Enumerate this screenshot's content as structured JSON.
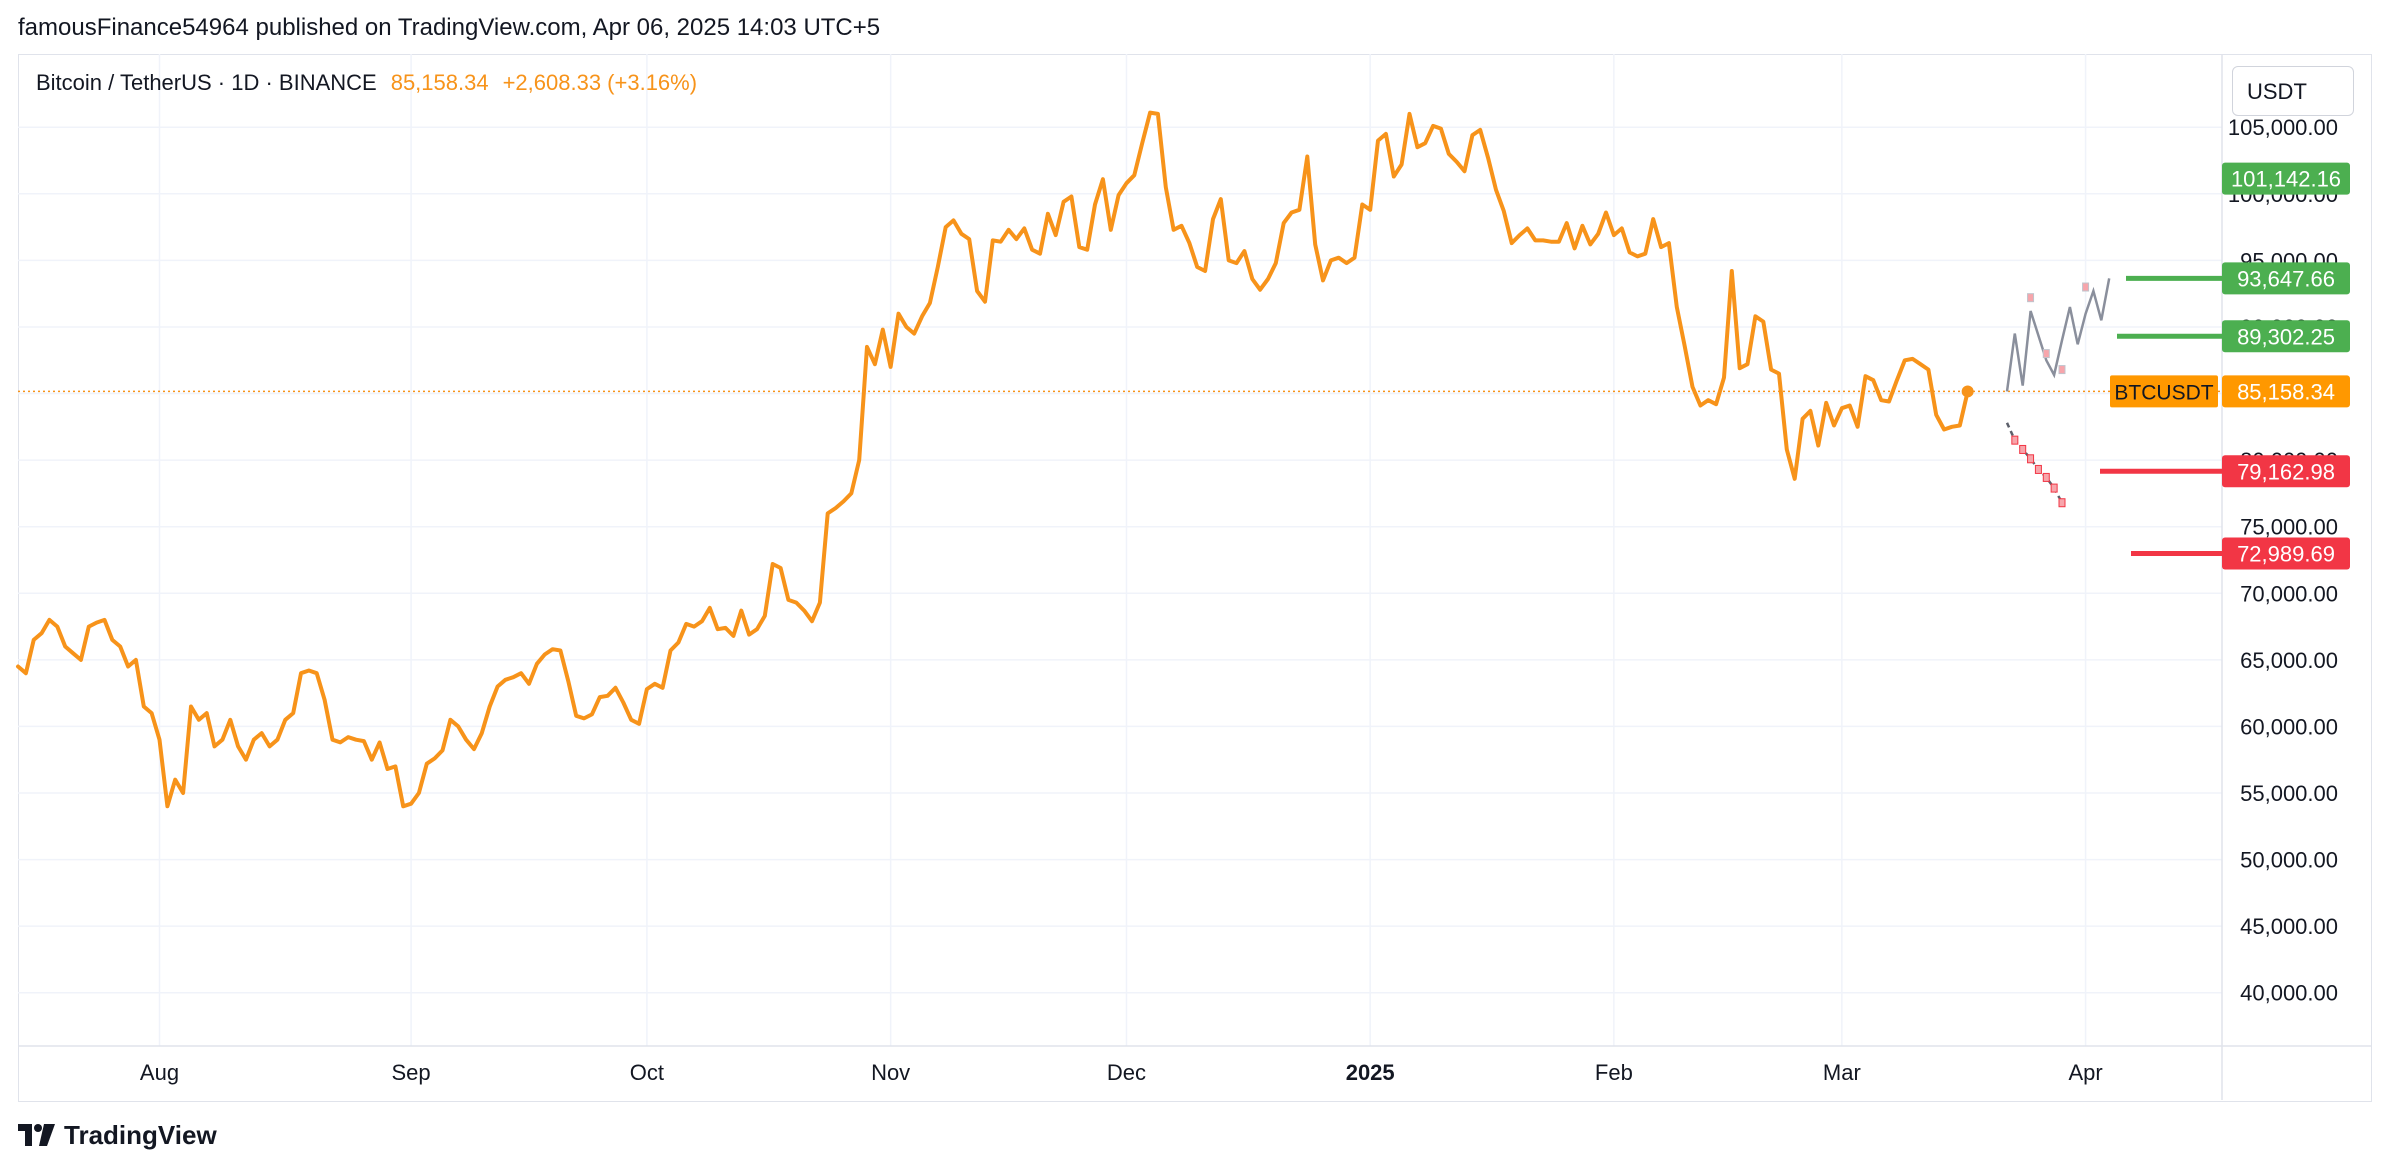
{
  "header": {
    "attribution": "famousFinance54964 published on TradingView.com, Apr 06, 2025 14:03 UTC+5"
  },
  "legend": {
    "symbol": "Bitcoin / TetherUS · 1D · BINANCE",
    "price": "85,158.34",
    "change": "+2,608.33 (+3.16%)"
  },
  "currency_button": "USDT",
  "footer": {
    "logo_text": "TradingView"
  },
  "colors": {
    "series": "#f7931a",
    "green_label": "#4caf50",
    "red_label": "#f23645",
    "orange_label": "#ff9800",
    "grid": "#f0f3fa"
  },
  "price_labels": [
    {
      "value": 101142.16,
      "text": "101,142.16",
      "color": "#4caf50"
    },
    {
      "value": 93647.66,
      "text": "93,647.66",
      "color": "#4caf50"
    },
    {
      "value": 89302.25,
      "text": "89,302.25",
      "color": "#4caf50"
    },
    {
      "value": 85158.34,
      "text": "85,158.34",
      "color": "#ff9800"
    },
    {
      "value": 79162.98,
      "text": "79,162.98",
      "color": "#f23645"
    },
    {
      "value": 72989.69,
      "text": "72,989.69",
      "color": "#f23645"
    }
  ],
  "symbol_tag": "BTCUSDT",
  "chart_data": {
    "type": "line",
    "series": [
      {
        "values": [
          64500,
          64000,
          66500,
          67000,
          68000,
          67500,
          66000,
          65500,
          65000,
          67500,
          67800,
          68000,
          66500,
          66000,
          64500,
          65000,
          61500,
          61000,
          59000,
          54000,
          56000,
          55000,
          61500,
          60500,
          61000,
          58500,
          59000,
          60500,
          58500,
          57500,
          59000,
          59500,
          58500,
          59000,
          60500,
          61000,
          64000,
          64200,
          64000,
          62000,
          59000,
          58800,
          59200,
          59000,
          58900,
          57500,
          58800,
          56800,
          57000,
          54000,
          54200,
          55000,
          57200,
          57600,
          58200,
          60500,
          60000,
          59000,
          58300,
          59500,
          61500,
          63000,
          63500,
          63700,
          64000,
          63200,
          64700,
          65400,
          65800,
          65700,
          63400,
          60800,
          60600,
          60900,
          62200,
          62300,
          62900,
          61800,
          60500,
          60200,
          62800,
          63200,
          62900,
          65700,
          66300,
          67700,
          67500,
          67900,
          68900,
          67300,
          67400,
          66800,
          68700,
          66900,
          67300,
          68300,
          72200,
          71900,
          69500,
          69300,
          68700,
          67900,
          69300,
          76000,
          76400,
          76900,
          77500,
          80000,
          88500,
          87200,
          89800,
          87000,
          91000,
          90000,
          89500,
          90800,
          91800,
          94500,
          97500,
          98000,
          97000,
          96600,
          92700,
          91900,
          96500,
          96400,
          97300,
          96600,
          97400,
          95800,
          95500,
          98500,
          96900,
          99400,
          99800,
          96000,
          95800,
          99200,
          101100,
          97300,
          99900,
          100800,
          101400,
          103800,
          106100,
          106000,
          100500,
          97300,
          97600,
          96300,
          94500,
          94200,
          98100,
          99600,
          95000,
          94800,
          95700,
          93600,
          92800,
          93600,
          94800,
          97800,
          98600,
          98800,
          102800,
          96200,
          93500,
          95000,
          95200,
          94800,
          95200,
          99200,
          98800,
          104000,
          104500,
          101300,
          102200,
          106000,
          103500,
          103800,
          105100,
          104900,
          103000,
          102400,
          101700,
          104400,
          104800,
          102700,
          100300,
          98700,
          96300,
          96900,
          97400,
          96500,
          96500,
          96400,
          96400,
          97800,
          95900,
          97600,
          96200,
          97000,
          98600,
          96900,
          97400,
          95600,
          95300,
          95500,
          98100,
          96000,
          96300,
          91500,
          88600,
          85500,
          84100,
          84500,
          84200,
          86200,
          94200,
          86900,
          87200,
          90800,
          90400,
          86800,
          86500,
          80800,
          78600,
          83100,
          83700,
          81100,
          84300,
          82600,
          83900,
          84100,
          82500,
          86300,
          86000,
          84500,
          84400,
          86000,
          87500,
          87600,
          87200,
          86800,
          83400,
          82300,
          82500,
          82600,
          85158
        ]
      }
    ],
    "x_tick_labels": [
      "Aug",
      "Sep",
      "Oct",
      "Nov",
      "Dec",
      "2025",
      "Feb",
      "Mar",
      "Apr"
    ],
    "y_tick_labels": [
      "105,000.00",
      "100,000.00",
      "95,000.00",
      "90,000.00",
      "85,000.00",
      "80,000.00",
      "75,000.00",
      "70,000.00",
      "65,000.00",
      "60,000.00",
      "55,000.00",
      "50,000.00",
      "45,000.00",
      "40,000.00"
    ],
    "y_ticks": [
      105000,
      100000,
      95000,
      90000,
      85000,
      80000,
      75000,
      70000,
      65000,
      60000,
      55000,
      50000,
      45000,
      40000
    ],
    "ylim": [
      36000,
      110500
    ],
    "x_range_days": [
      0,
      260
    ],
    "x_tick_days": [
      18,
      50,
      80,
      111,
      141,
      172,
      203,
      232,
      263
    ],
    "current_value": 85158.34,
    "current_value_line": "dotted",
    "grid": true,
    "projections": {
      "up": [
        [
          253,
          85158
        ],
        [
          254,
          89500
        ],
        [
          255,
          85600
        ],
        [
          256,
          91200
        ],
        [
          258,
          87500
        ],
        [
          259,
          86400
        ],
        [
          260,
          89000
        ],
        [
          261,
          91500
        ],
        [
          262,
          88700
        ],
        [
          263,
          91000
        ],
        [
          264,
          92700
        ],
        [
          265,
          90500
        ],
        [
          266,
          93647
        ]
      ],
      "down": [
        [
          253,
          82800
        ],
        [
          254,
          81500
        ],
        [
          255,
          80800
        ],
        [
          256,
          80100
        ],
        [
          257,
          79300
        ],
        [
          258,
          78700
        ],
        [
          259,
          77900
        ],
        [
          260,
          76800
        ]
      ]
    }
  }
}
